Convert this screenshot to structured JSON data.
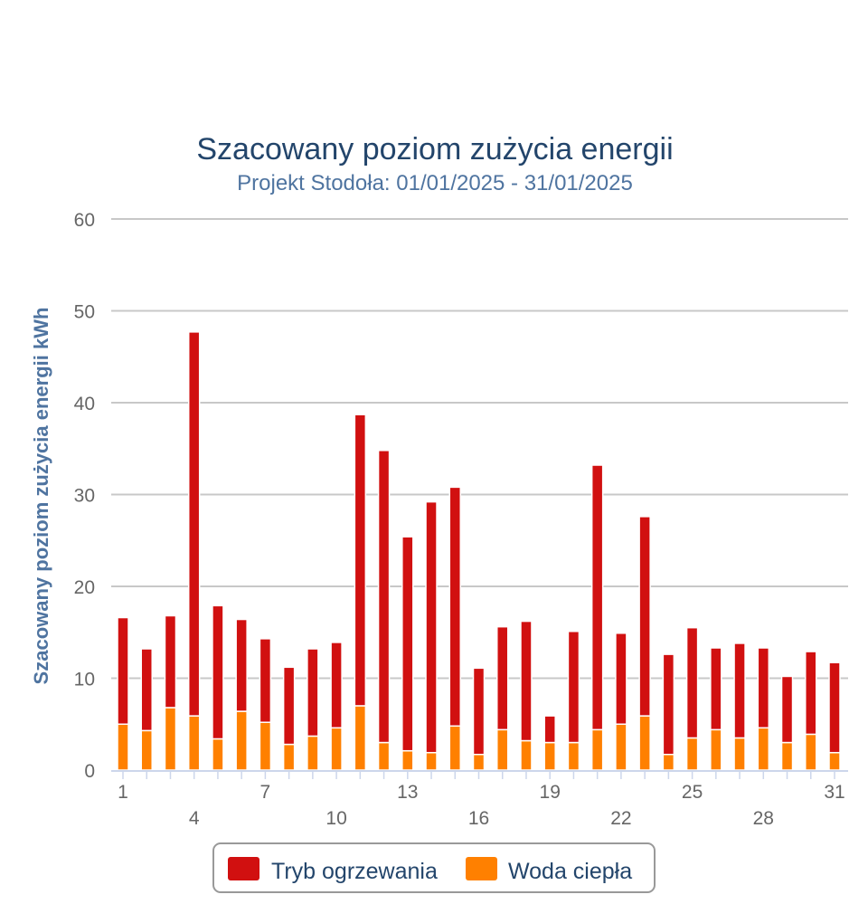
{
  "chart_data": {
    "type": "bar",
    "stacked": true,
    "title": "Szacowany poziom zużycia energii",
    "subtitle": "Projekt Stodoła: 01/01/2025 - 31/01/2025",
    "xlabel": "",
    "ylabel": "Szacowany poziom zużycia energii kWh",
    "ylim": [
      0,
      60
    ],
    "yticks": [
      0,
      10,
      20,
      30,
      40,
      50,
      60
    ],
    "grid": true,
    "legend_position": "bottom-center",
    "categories": [
      1,
      2,
      3,
      4,
      5,
      6,
      7,
      8,
      9,
      10,
      11,
      12,
      13,
      14,
      15,
      16,
      17,
      18,
      19,
      20,
      21,
      22,
      23,
      24,
      25,
      26,
      27,
      28,
      29,
      30,
      31
    ],
    "xtick_labels_row1": [
      "1",
      "7",
      "13",
      "19",
      "25",
      "31"
    ],
    "xtick_labels_row2": [
      "4",
      "10",
      "16",
      "22",
      "28"
    ],
    "series": [
      {
        "name": "Woda ciepła",
        "color": "#ff8000",
        "values": [
          5.0,
          4.3,
          6.8,
          5.9,
          3.4,
          6.4,
          5.2,
          2.8,
          3.7,
          4.6,
          7.0,
          3.0,
          2.1,
          1.9,
          4.8,
          1.7,
          4.4,
          3.2,
          3.0,
          3.0,
          4.4,
          5.0,
          5.9,
          1.7,
          3.5,
          4.4,
          3.5,
          4.6,
          3.0,
          3.9,
          1.9
        ]
      },
      {
        "name": "Tryb ogrzewania",
        "color": "#d11010",
        "values": [
          11.6,
          8.9,
          10.0,
          41.8,
          14.5,
          10.0,
          9.1,
          8.4,
          9.5,
          9.3,
          31.7,
          31.8,
          23.3,
          27.3,
          26.0,
          9.4,
          11.2,
          13.0,
          2.9,
          12.1,
          28.8,
          9.9,
          21.7,
          10.9,
          12.0,
          8.9,
          10.3,
          8.7,
          7.2,
          9.0,
          9.8
        ]
      }
    ],
    "legend": [
      {
        "label": "Tryb ogrzewania",
        "color": "#d11010"
      },
      {
        "label": "Woda ciepła",
        "color": "#ff8000"
      }
    ]
  }
}
